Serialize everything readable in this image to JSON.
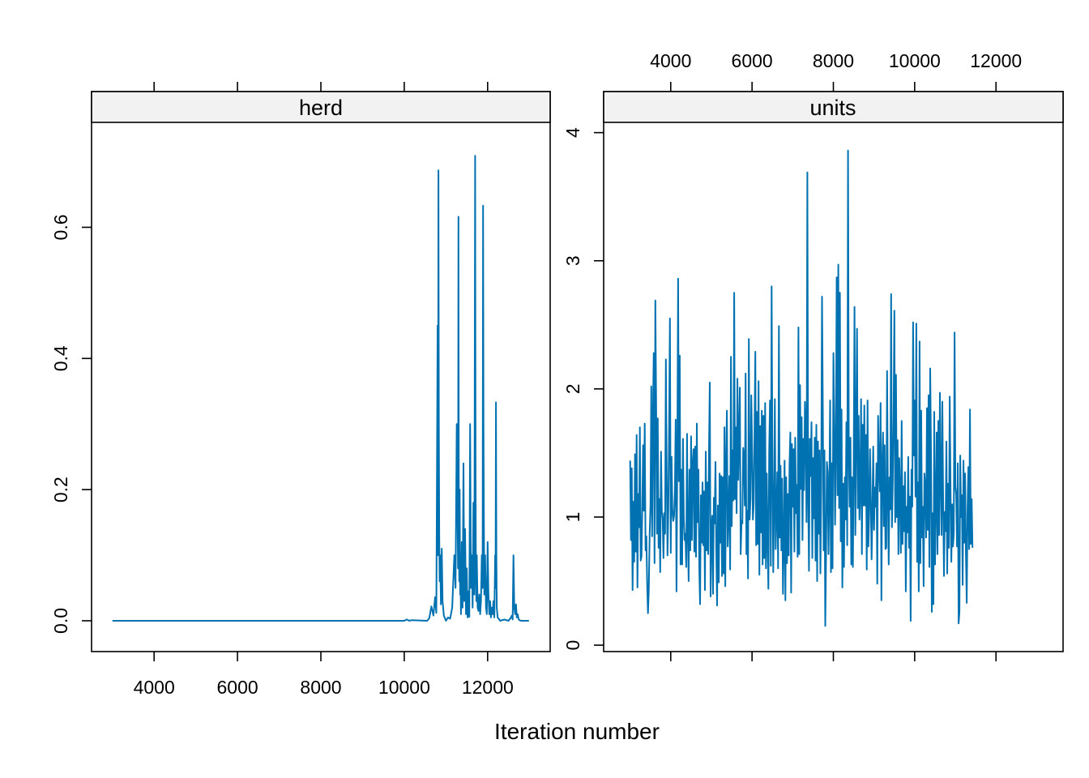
{
  "chart_data": {
    "type": "line",
    "xlabel": "Iteration number",
    "trace_color": "#0072B2",
    "strip_color": "#f2f2f2",
    "x_range": [
      3001,
      12991
    ],
    "panels": [
      {
        "name": "herd",
        "xlim": [
          2500,
          13500
        ],
        "ylim": [
          -0.047,
          0.76
        ],
        "yticks": [
          0.0,
          0.2,
          0.4,
          0.6
        ],
        "ytick_labels": [
          "0.0",
          "0.2",
          "0.4",
          "0.6"
        ],
        "xticks": [
          4000,
          6000,
          8000,
          10000,
          12000
        ],
        "xtick_labels": [
          "4000",
          "6000",
          "8000",
          "10000",
          "12000"
        ],
        "x": [
          3001,
          10000,
          10060,
          10120,
          10180,
          10550,
          10600,
          10650,
          10700,
          10740,
          10770,
          10800,
          10810,
          10820,
          10830,
          10840,
          10850,
          10860,
          10880,
          10900,
          10920,
          10950,
          11000,
          11050,
          11100,
          11150,
          11200,
          11230,
          11260,
          11290,
          11300,
          11310,
          11320,
          11330,
          11340,
          11350,
          11360,
          11380,
          11400,
          11420,
          11440,
          11460,
          11480,
          11500,
          11520,
          11540,
          11560,
          11580,
          11600,
          11620,
          11640,
          11660,
          11680,
          11700,
          11710,
          11720,
          11730,
          11740,
          11760,
          11780,
          11800,
          11820,
          11840,
          11860,
          11880,
          11890,
          11900,
          11910,
          11920,
          11940,
          11960,
          11980,
          12000,
          12020,
          12040,
          12060,
          12080,
          12100,
          12120,
          12140,
          12160,
          12180,
          12190,
          12200,
          12210,
          12220,
          12240,
          12300,
          12400,
          12500,
          12550,
          12580,
          12600,
          12620,
          12640,
          12660,
          12680,
          12700,
          12720,
          12740,
          12760,
          12800,
          12850,
          12991
        ],
        "y": [
          0.0,
          0.0,
          0.002,
          0.0,
          0.001,
          0.0,
          0.004,
          0.022,
          0.008,
          0.036,
          0.012,
          0.45,
          0.1,
          0.687,
          0.3,
          0.13,
          0.06,
          0.1,
          0.025,
          0.11,
          0.03,
          0.008,
          0.0,
          0.005,
          0.003,
          0.02,
          0.1,
          0.05,
          0.3,
          0.08,
          0.616,
          0.15,
          0.06,
          0.2,
          0.04,
          0.06,
          0.01,
          0.12,
          0.02,
          0.24,
          0.03,
          0.14,
          0.01,
          0.08,
          0.005,
          0.045,
          0.006,
          0.3,
          0.05,
          0.1,
          0.02,
          0.18,
          0.04,
          0.709,
          0.25,
          0.06,
          0.03,
          0.1,
          0.02,
          0.015,
          0.04,
          0.01,
          0.03,
          0.1,
          0.05,
          0.633,
          0.3,
          0.15,
          0.04,
          0.1,
          0.02,
          0.01,
          0.12,
          0.04,
          0.01,
          0.03,
          0.005,
          0.02,
          0.01,
          0.03,
          0.005,
          0.1,
          0.05,
          0.333,
          0.1,
          0.02,
          0.005,
          0.0,
          0.002,
          0.0,
          0.004,
          0.008,
          0.002,
          0.1,
          0.02,
          0.01,
          0.025,
          0.005,
          0.01,
          0.003,
          0.001,
          0.0,
          0.0,
          0.0
        ]
      },
      {
        "name": "units",
        "xlim": [
          2350,
          13650
        ],
        "ylim": [
          -0.05,
          4.08
        ],
        "yticks": [
          0,
          1,
          2,
          3,
          4
        ],
        "ytick_labels": [
          "0",
          "1",
          "2",
          "3",
          "4"
        ],
        "xticks": [
          4000,
          6000,
          8000,
          10000,
          12000
        ],
        "xtick_labels": [
          "4000",
          "6000",
          "8000",
          "10000",
          "12000"
        ],
        "x_start": 3001,
        "x_step": 20,
        "y": [
          1.44,
          0.82,
          1.38,
          0.43,
          1.12,
          0.65,
          1.49,
          0.73,
          1.64,
          0.45,
          1.18,
          0.92,
          1.7,
          0.66,
          0.69,
          1.07,
          1.56,
          1.05,
          1.73,
          0.74,
          0.85,
          0.48,
          0.25,
          0.43,
          0.87,
          1.09,
          2.02,
          0.85,
          1.78,
          2.28,
          0.64,
          2.69,
          1.87,
          0.87,
          1.77,
          0.76,
          1.14,
          0.57,
          1.51,
          1.05,
          0.99,
          0.68,
          1.03,
          0.87,
          2.23,
          1.36,
          0.7,
          1.06,
          1.71,
          2.55,
          0.72,
          1.47,
          1.06,
          0.97,
          1.01,
          1.2,
          1.76,
          0.42,
          1.45,
          2.86,
          1.28,
          2.26,
          0.63,
          1.37,
          0.63,
          1.61,
          1.0,
          0.82,
          0.87,
          0.61,
          1.65,
          0.87,
          0.5,
          1.37,
          0.74,
          1.63,
          0.82,
          1.42,
          1.53,
          0.73,
          1.55,
          0.69,
          1.73,
          0.96,
          1.37,
          0.61,
          0.32,
          1.17,
          0.8,
          1.27,
          0.78,
          1.2,
          0.43,
          1.51,
          0.74,
          1.27,
          0.71,
          1.52,
          2.05,
          0.38,
          0.91,
          1.01,
          0.4,
          1.15,
          0.95,
          1.43,
          0.74,
          0.31,
          1.09,
          0.49,
          1.34,
          0.8,
          1.32,
          0.54,
          1.31,
          0.56,
          1.7,
          0.46,
          1.41,
          1.83,
          0.77,
          1.01,
          1.32,
          0.59,
          2.25,
          0.93,
          1.52,
          1.13,
          2.75,
          1.14,
          1.7,
          1.03,
          2.08,
          1.29,
          1.63,
          2.01,
          0.71,
          0.97,
          0.95,
          1.54,
          1.47,
          1.09,
          2.12,
          0.71,
          1.05,
          0.52,
          2.39,
          0.98,
          1.14,
          1.95,
          1.54,
          0.98,
          1.1,
          1.68,
          2.29,
          0.78,
          1.82,
          0.79,
          2.06,
          0.55,
          1.71,
          0.88,
          1.83,
          0.63,
          1.79,
          0.68,
          1.89,
          0.6,
          1.34,
          0.82,
          0.44,
          1.52,
          1.91,
          0.62,
          2.8,
          1.38,
          0.57,
          1.08,
          1.92,
          0.75,
          1.01,
          1.35,
          0.6,
          2.49,
          0.84,
          1.4,
          0.74,
          1.3,
          0.4,
          0.78,
          1.44,
          0.35,
          1.31,
          0.64,
          1.18,
          0.7,
          1.41,
          1.66,
          0.41,
          1.57,
          1.08,
          1.53,
          0.73,
          1.62,
          1.03,
          1.25,
          0.69,
          2.48,
          0.71,
          2.03,
          1.22,
          1.78,
          0.82,
          1.61,
          1.21,
          1.9,
          1.66,
          0.96,
          3.69,
          1.19,
          0.58,
          1.61,
          1.32,
          1.74,
          0.68,
          1.46,
          0.99,
          1.62,
          0.66,
          1.72,
          0.5,
          1.59,
          0.87,
          1.52,
          0.56,
          1.21,
          2.72,
          1.84,
          0.74,
          1.52,
          0.15,
          0.69,
          1.43,
          1.35,
          0.71,
          1.2,
          1.91,
          0.57,
          1.42,
          0.6,
          2.28,
          1.73,
          0.94,
          1.54,
          2.87,
          1.17,
          2.97,
          1.07,
          2.75,
          0.81,
          1.84,
          0.45,
          1.26,
          0.61,
          1.31,
          0.98,
          1.74,
          0.78,
          3.86,
          1.48,
          1.08,
          1.62,
          0.63,
          1.31,
          0.61,
          1.42,
          2.64,
          0.86,
          1.59,
          2.47,
          1.07,
          1.79,
          0.98,
          1.18,
          1.92,
          0.71,
          1.72,
          1.09,
          1.87,
          1.09,
          1.64,
          0.59,
          1.91,
          0.77,
          1.02,
          1.53,
          1.15,
          0.67,
          1.05,
          1.55,
          0.9,
          1.23,
          1.08,
          1.42,
          0.48,
          1.79,
          1.4,
          1.2,
          1.89,
          0.35,
          1.41,
          1.66,
          0.93,
          1.56,
          0.75,
          0.76,
          2.14,
          1.18,
          0.63,
          1.31,
          1.06,
          2.74,
          0.92,
          1.27,
          1.8,
          2.61,
          0.96,
          2.11,
          1.0,
          1.6,
          0.71,
          1.46,
          1.17,
          0.72,
          1.75,
          0.79,
          1.24,
          0.89,
          1.35,
          0.42,
          1.08,
          0.88,
          1.47,
          0.76,
          1.16,
          0.19,
          1.37,
          1.08,
          2.52,
          1.48,
          1.91,
          1.16,
          2.51,
          0.65,
          1.27,
          0.42,
          2.37,
          0.64,
          1.83,
          0.84,
          1.08,
          0.46,
          1.34,
          1.22,
          0.84,
          1.85,
          0.9,
          1.95,
          0.61,
          2.16,
          1.53,
          0.26,
          1.03,
          0.32,
          1.82,
          0.63,
          1.09,
          1.66,
          0.71,
          1.75,
          0.86,
          1.97,
          1.29,
          0.86,
          1.9,
          1.13,
          0.54,
          1.04,
          0.89,
          1.59,
          0.56,
          1.26,
          0.76,
          1.94,
          1.23,
          0.65,
          1.1,
          0.77,
          0.87,
          2.44,
          1.24,
          1.17,
          0.77,
          1.42,
          0.17,
          0.26,
          1.48,
          1.0,
          1.17,
          0.47,
          1.44,
          0.8,
          1.34,
          0.71,
          0.33,
          1.06,
          1.39,
          0.75,
          1.84,
          0.79,
          1.14,
          0.76
        ]
      }
    ]
  }
}
